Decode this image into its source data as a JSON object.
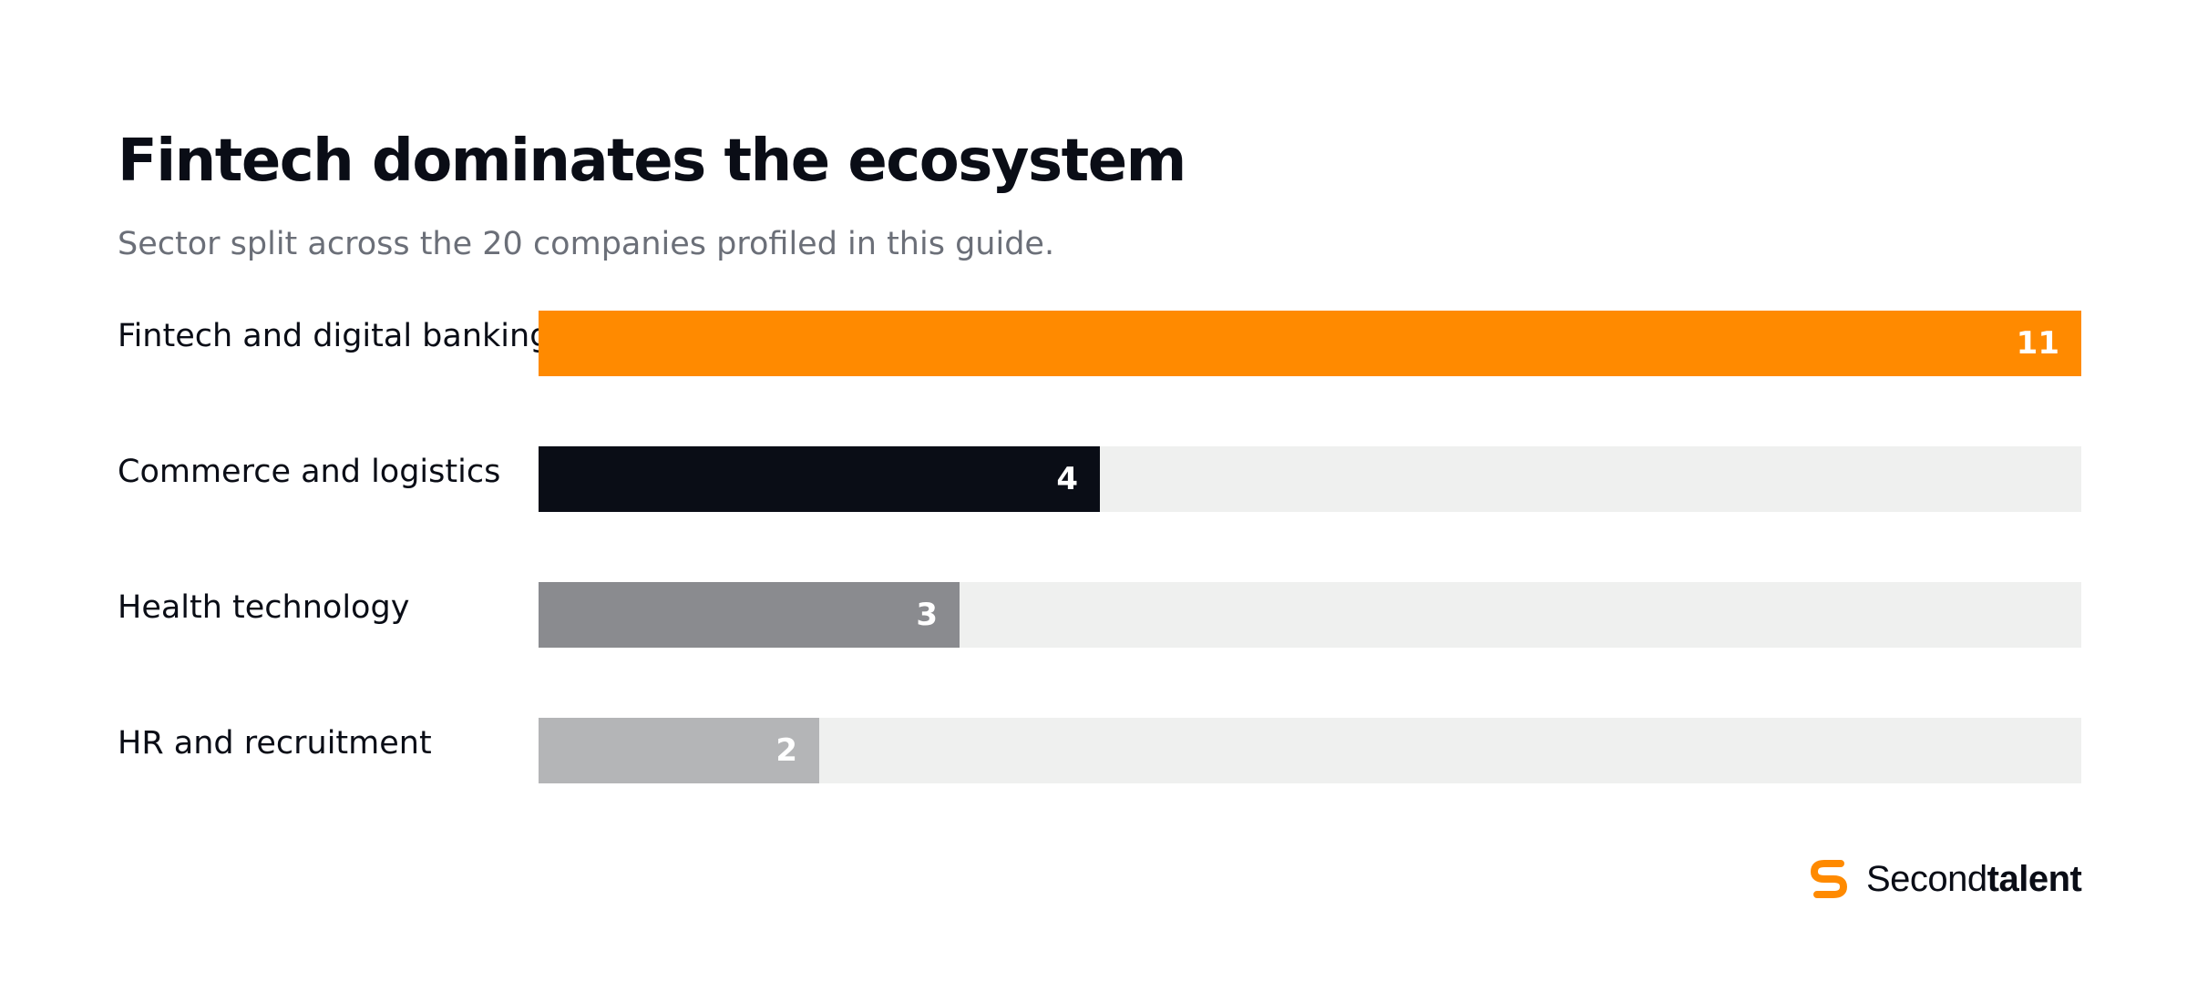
{
  "chart_data": {
    "type": "bar",
    "orientation": "horizontal",
    "title": "Fintech dominates the ecosystem",
    "subtitle": "Sector split across the 20 companies profiled in this guide.",
    "categories": [
      "Fintech and digital banking",
      "Commerce and logistics",
      "Health technology",
      "HR and recruitment"
    ],
    "values": [
      11,
      4,
      3,
      2
    ],
    "value_labels": [
      "11",
      "4",
      "3",
      "2"
    ],
    "colors": [
      "#ff8a00",
      "#0a0d16",
      "#8a8b8f",
      "#b4b5b7"
    ],
    "track_color": "#eff0ef",
    "xlim": [
      0,
      11
    ],
    "grid": false,
    "legend": "none"
  },
  "brand": {
    "name_regular": "Second",
    "name_bold": "talent",
    "logo_icon": "secondtalent-s-logo-icon",
    "accent": "#ff8a00"
  }
}
